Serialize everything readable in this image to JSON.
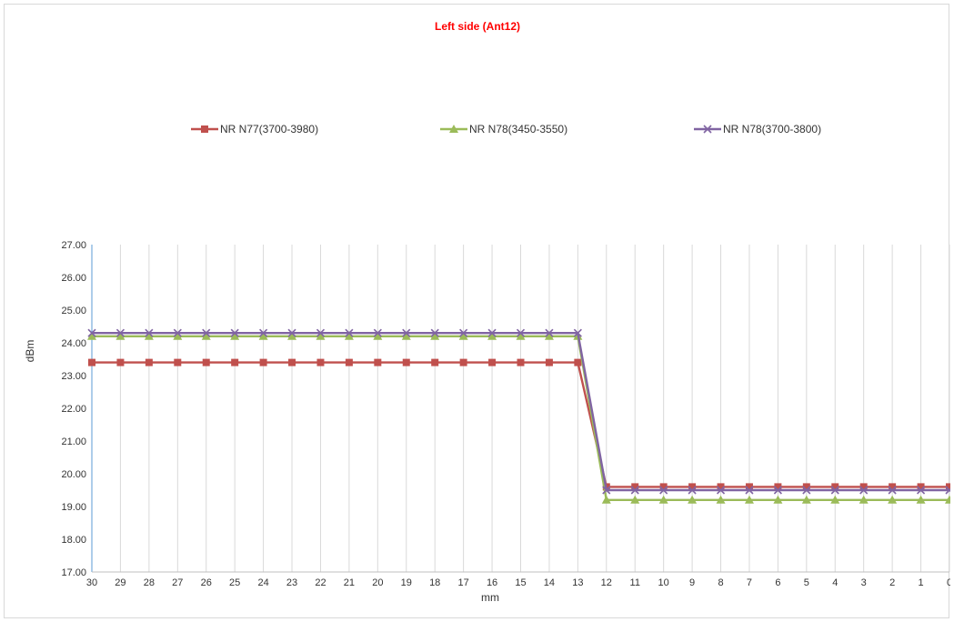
{
  "chart_data": {
    "type": "line",
    "title": "Left side (Ant12)",
    "title_color": "#ff0000",
    "xlabel": "mm",
    "ylabel": "dBm",
    "ylim": [
      17,
      27
    ],
    "y_ticks": [
      "17.00",
      "18.00",
      "19.00",
      "20.00",
      "21.00",
      "22.00",
      "23.00",
      "24.00",
      "25.00",
      "26.00",
      "27.00"
    ],
    "categories": [
      "30",
      "29",
      "28",
      "27",
      "26",
      "25",
      "24",
      "23",
      "22",
      "21",
      "20",
      "19",
      "18",
      "17",
      "16",
      "15",
      "14",
      "13",
      "12",
      "11",
      "10",
      "9",
      "8",
      "7",
      "6",
      "5",
      "4",
      "3",
      "2",
      "1",
      "0"
    ],
    "grid": "vertical",
    "legend_position": "top",
    "series": [
      {
        "name": "NR N77(3700-3980)",
        "color": "#c0504d",
        "marker": "square",
        "values": [
          23.4,
          23.4,
          23.4,
          23.4,
          23.4,
          23.4,
          23.4,
          23.4,
          23.4,
          23.4,
          23.4,
          23.4,
          23.4,
          23.4,
          23.4,
          23.4,
          23.4,
          23.4,
          19.6,
          19.6,
          19.6,
          19.6,
          19.6,
          19.6,
          19.6,
          19.6,
          19.6,
          19.6,
          19.6,
          19.6,
          19.6
        ]
      },
      {
        "name": "NR N78(3450-3550)",
        "color": "#9bbb59",
        "marker": "triangle",
        "values": [
          24.2,
          24.2,
          24.2,
          24.2,
          24.2,
          24.2,
          24.2,
          24.2,
          24.2,
          24.2,
          24.2,
          24.2,
          24.2,
          24.2,
          24.2,
          24.2,
          24.2,
          24.2,
          19.2,
          19.2,
          19.2,
          19.2,
          19.2,
          19.2,
          19.2,
          19.2,
          19.2,
          19.2,
          19.2,
          19.2,
          19.2
        ]
      },
      {
        "name": "NR N78(3700-3800)",
        "color": "#8064a2",
        "marker": "x",
        "values": [
          24.3,
          24.3,
          24.3,
          24.3,
          24.3,
          24.3,
          24.3,
          24.3,
          24.3,
          24.3,
          24.3,
          24.3,
          24.3,
          24.3,
          24.3,
          24.3,
          24.3,
          24.3,
          19.5,
          19.5,
          19.5,
          19.5,
          19.5,
          19.5,
          19.5,
          19.5,
          19.5,
          19.5,
          19.5,
          19.5,
          19.5
        ]
      }
    ]
  }
}
